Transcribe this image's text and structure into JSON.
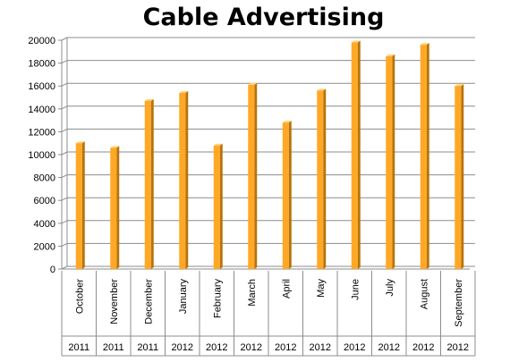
{
  "chart_data": {
    "type": "bar",
    "title": "Cable Advertising",
    "xlabel": "",
    "ylabel": "",
    "ylim": [
      0,
      20000
    ],
    "yticks": [
      0,
      2000,
      4000,
      6000,
      8000,
      10000,
      12000,
      14000,
      16000,
      18000,
      20000
    ],
    "grid": true,
    "legend": "none",
    "categories": [
      "October",
      "November",
      "December",
      "January",
      "February",
      "March",
      "April",
      "May",
      "June",
      "July",
      "August",
      "September"
    ],
    "years": [
      "2011",
      "2011",
      "2011",
      "2012",
      "2012",
      "2012",
      "2012",
      "2012",
      "2012",
      "2012",
      "2012",
      "2012"
    ],
    "values": [
      11000,
      10600,
      14700,
      15400,
      10800,
      16100,
      12800,
      15600,
      19800,
      18600,
      19600,
      16000
    ],
    "colors": {
      "bar_front": "#FFA826",
      "bar_side": "#B87308",
      "bar_top": "#FFD27A",
      "grid": "#8C8C8C"
    }
  }
}
